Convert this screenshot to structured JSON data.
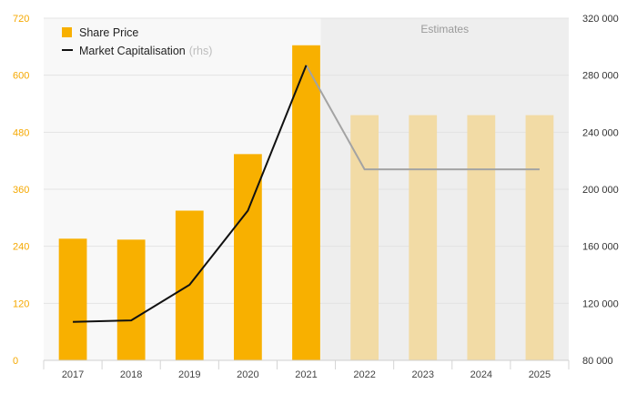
{
  "chart_data": {
    "type": "bar",
    "categories": [
      "2017",
      "2018",
      "2019",
      "2020",
      "2021",
      "2022",
      "2023",
      "2024",
      "2025"
    ],
    "series": [
      {
        "name": "Share Price",
        "kind": "bar",
        "axis": "left",
        "values": [
          256,
          254,
          315,
          434,
          663,
          516,
          516,
          516,
          516
        ],
        "estimated_from_index": 5,
        "color": "#f8b000",
        "estimate_color": "#f2dba5"
      },
      {
        "name": "Market Capitalisation",
        "axis_note": "(rhs)",
        "kind": "line",
        "axis": "right",
        "values": [
          107000,
          108000,
          133000,
          185000,
          287000,
          214000,
          214000,
          214000,
          214000
        ],
        "estimated_from_index": 4,
        "color": "#111111",
        "estimate_color": "#a3a3a3"
      }
    ],
    "ylim_left": [
      0,
      720
    ],
    "yticks_left": [
      "0",
      "120",
      "240",
      "360",
      "480",
      "600",
      "720"
    ],
    "ylim_right": [
      80000,
      320000
    ],
    "yticks_right": [
      "80 000",
      "120 000",
      "160 000",
      "200 000",
      "240 000",
      "280 000",
      "320 000"
    ],
    "estimates_label": "Estimates",
    "estimates_start_category": "2022",
    "legend_position": "top-left",
    "grid": "horizontal"
  }
}
